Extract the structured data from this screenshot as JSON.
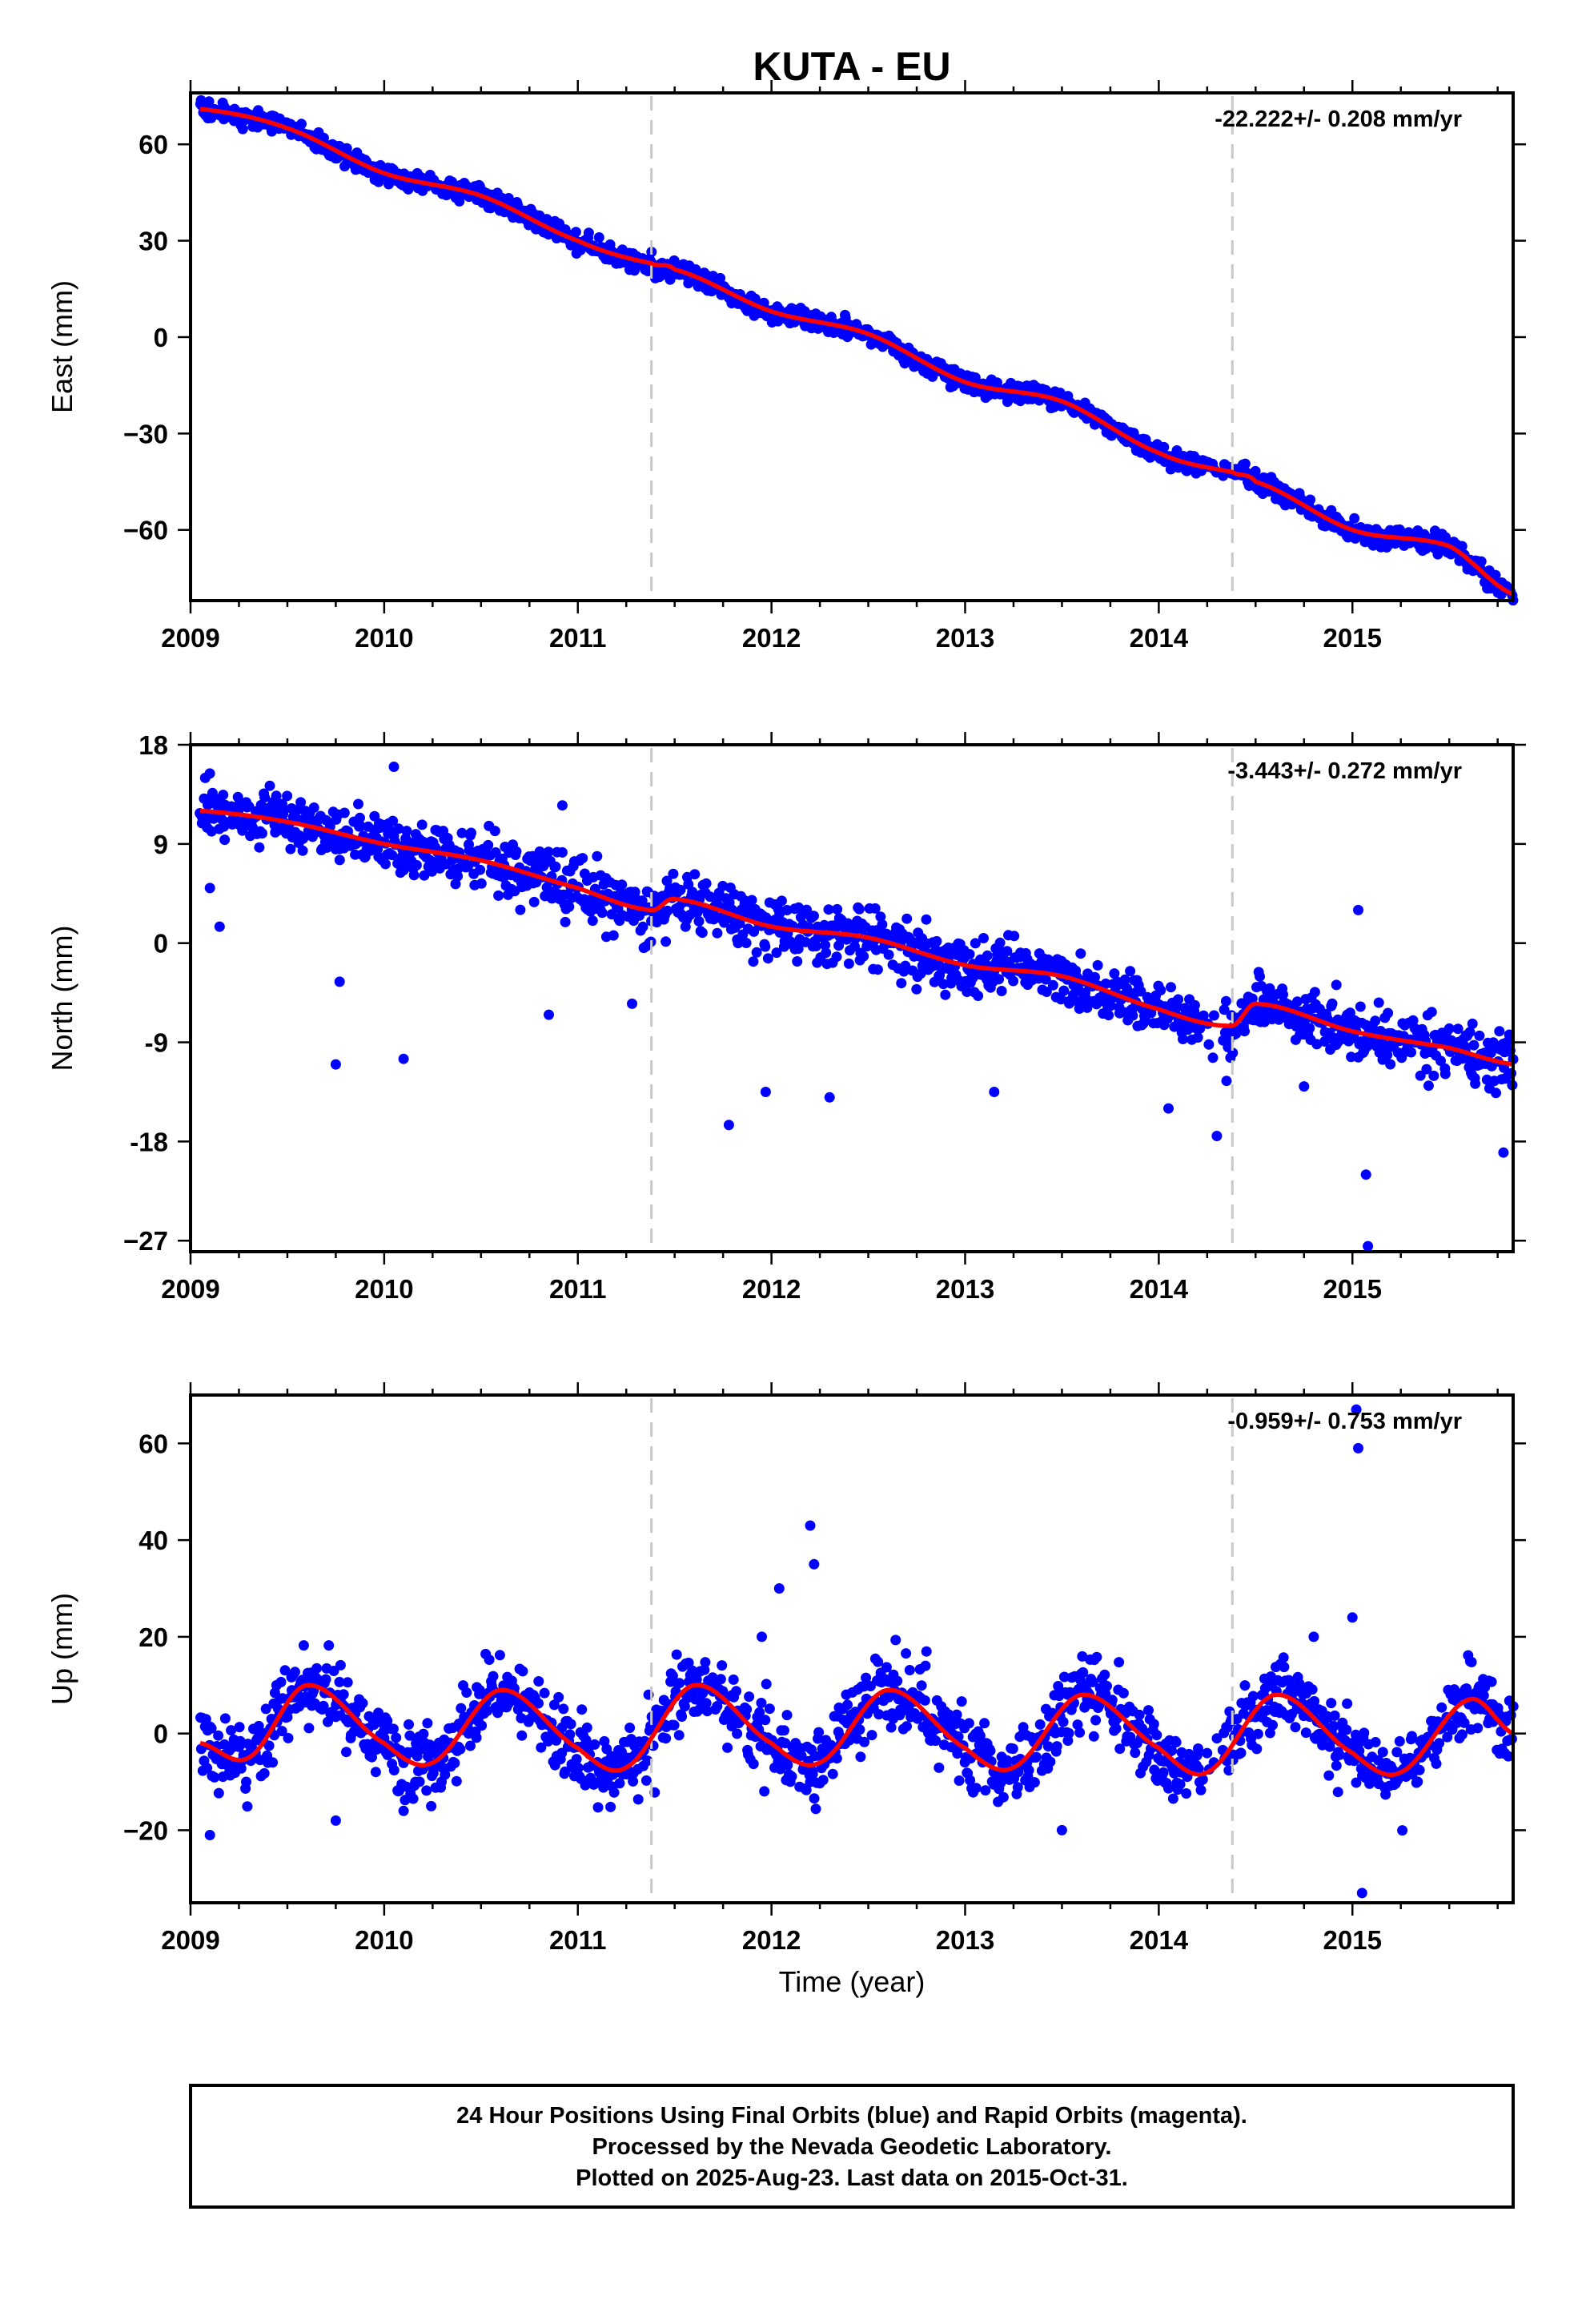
{
  "chart_data": {
    "type": "scatter",
    "title": "KUTA - EU",
    "x_range": [
      2009,
      2015.83
    ],
    "x_ticks": [
      "2009",
      "2010",
      "2011",
      "2012",
      "2013",
      "2014",
      "2015"
    ],
    "xlabel": "Time (year)",
    "vertical_dashed_lines": [
      2011.38,
      2014.38
    ],
    "legend": "none",
    "grid": false,
    "series_colors": {
      "observations": "#0000ff",
      "model_fit": "#ff0000",
      "event_lines": "#c8c8c8"
    },
    "panels": [
      {
        "id": "east",
        "ylabel": "East (mm)",
        "ylim": [
          -82,
          76
        ],
        "y_ticks": [
          "60",
          "30",
          "0",
          "−30",
          "−60"
        ],
        "y_tick_values": [
          60,
          30,
          0,
          -30,
          -60
        ],
        "rate_label": "-22.222+/- 0.208 mm/yr",
        "rate_mm_per_yr": -22.222,
        "seasonal_amplitude_mm": 2.5,
        "scatter_sd_mm": 1.5,
        "model_fit": [
          [
            2009.05,
            71
          ],
          [
            2009.5,
            65
          ],
          [
            2010,
            51
          ],
          [
            2010.5,
            44
          ],
          [
            2011,
            30
          ],
          [
            2011.38,
            23
          ],
          [
            2011.5,
            21
          ],
          [
            2012,
            8
          ],
          [
            2012.5,
            1
          ],
          [
            2013,
            -14
          ],
          [
            2013.5,
            -20
          ],
          [
            2014,
            -36
          ],
          [
            2014.38,
            -42
          ],
          [
            2014.5,
            -45
          ],
          [
            2015,
            -60
          ],
          [
            2015.5,
            -65
          ],
          [
            2015.83,
            -80
          ]
        ]
      },
      {
        "id": "north",
        "ylabel": "North (mm)",
        "ylim": [
          -28,
          18
        ],
        "y_ticks": [
          "18",
          "9",
          "0",
          "-9",
          "-18",
          "−27"
        ],
        "y_tick_values": [
          18,
          9,
          0,
          -9,
          -18,
          -27
        ],
        "rate_label": "-3.443+/- 0.272 mm/yr",
        "rate_mm_per_yr": -3.443,
        "seasonal_amplitude_mm": 1.2,
        "scatter_sd_mm": 1.3,
        "model_fit": [
          [
            2009.05,
            12
          ],
          [
            2009.5,
            11
          ],
          [
            2010,
            9
          ],
          [
            2010.5,
            7.5
          ],
          [
            2011,
            5
          ],
          [
            2011.38,
            3
          ],
          [
            2011.5,
            4
          ],
          [
            2012,
            1.5
          ],
          [
            2012.5,
            0.5
          ],
          [
            2013,
            -2
          ],
          [
            2013.5,
            -3
          ],
          [
            2014,
            -6
          ],
          [
            2014.38,
            -7.5
          ],
          [
            2014.5,
            -5.5
          ],
          [
            2015,
            -8
          ],
          [
            2015.5,
            -9.5
          ],
          [
            2015.83,
            -11
          ]
        ],
        "outliers": [
          [
            2009.1,
            5
          ],
          [
            2009.15,
            1.5
          ],
          [
            2009.75,
            -11
          ],
          [
            2009.77,
            -3.5
          ],
          [
            2010.1,
            -10.5
          ],
          [
            2010.05,
            16
          ],
          [
            2010.85,
            -6.5
          ],
          [
            2010.92,
            12.5
          ],
          [
            2011.28,
            -5.5
          ],
          [
            2011.78,
            -16.5
          ],
          [
            2011.97,
            -13.5
          ],
          [
            2012.3,
            -14
          ],
          [
            2013.15,
            -13.5
          ],
          [
            2014.05,
            -15
          ],
          [
            2014.3,
            -17.5
          ],
          [
            2014.35,
            -12.5
          ],
          [
            2015.03,
            3
          ],
          [
            2015.07,
            -21
          ],
          [
            2015.08,
            -27.5
          ],
          [
            2015.78,
            -19
          ],
          [
            2014.75,
            -13
          ]
        ]
      },
      {
        "id": "up",
        "ylabel": "Up (mm)",
        "ylim": [
          -35,
          70
        ],
        "y_ticks": [
          "60",
          "40",
          "20",
          "0",
          "−20"
        ],
        "y_tick_values": [
          60,
          40,
          20,
          0,
          -20
        ],
        "rate_label": "-0.959+/- 0.753 mm/yr",
        "rate_mm_per_yr": -0.959,
        "seasonal_amplitude_mm": 7.5,
        "scatter_sd_mm": 4,
        "model_fit": [
          [
            2009.05,
            -2
          ],
          [
            2009.3,
            -5
          ],
          [
            2009.6,
            10
          ],
          [
            2010,
            -2
          ],
          [
            2010.25,
            -6
          ],
          [
            2010.6,
            9
          ],
          [
            2011,
            -3
          ],
          [
            2011.25,
            -7
          ],
          [
            2011.6,
            10
          ],
          [
            2012,
            -2
          ],
          [
            2012.25,
            -6
          ],
          [
            2012.6,
            9
          ],
          [
            2013,
            -3
          ],
          [
            2013.25,
            -7
          ],
          [
            2013.6,
            8
          ],
          [
            2014,
            -3
          ],
          [
            2014.25,
            -8
          ],
          [
            2014.6,
            8
          ],
          [
            2015,
            -4
          ],
          [
            2015.25,
            -8
          ],
          [
            2015.6,
            7
          ],
          [
            2015.83,
            0
          ]
        ],
        "outliers": [
          [
            2012.2,
            43
          ],
          [
            2012.22,
            35
          ],
          [
            2012.04,
            30
          ],
          [
            2015.02,
            67
          ],
          [
            2015.03,
            59
          ],
          [
            2015.05,
            -33
          ],
          [
            2015,
            24
          ],
          [
            2011.95,
            20
          ],
          [
            2009.1,
            -21
          ],
          [
            2013.5,
            -20
          ],
          [
            2009.75,
            -18
          ],
          [
            2010.1,
            -16
          ],
          [
            2014.8,
            20
          ]
        ]
      }
    ]
  },
  "footer": {
    "line1": "24 Hour Positions Using Final Orbits (blue) and Rapid Orbits (magenta).",
    "line2": "Processed by the Nevada Geodetic Laboratory.",
    "line3": "Plotted on 2025-Aug-23. Last data on 2015-Oct-31."
  }
}
